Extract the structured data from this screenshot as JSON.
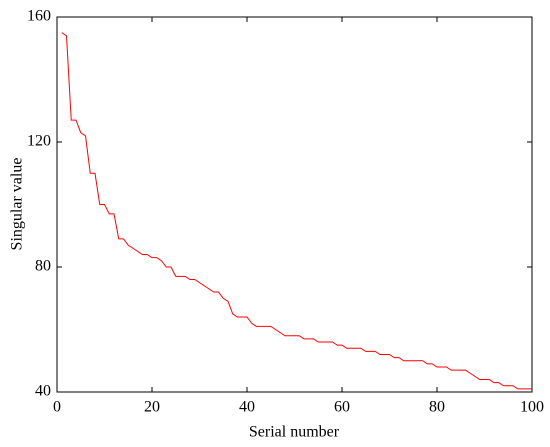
{
  "chart_data": {
    "type": "line",
    "xlabel": "Serial number",
    "ylabel": "Singular value",
    "xlim": [
      0,
      100
    ],
    "xticks": [
      0,
      20,
      40,
      60,
      80,
      100
    ],
    "ylim": [
      40,
      160
    ],
    "yticks": [
      40,
      80,
      120,
      160
    ],
    "grid": false,
    "x": [
      1,
      2,
      3,
      4,
      5,
      6,
      7,
      8,
      9,
      10,
      11,
      12,
      13,
      14,
      15,
      16,
      17,
      18,
      19,
      20,
      21,
      22,
      23,
      24,
      25,
      26,
      27,
      28,
      29,
      30,
      31,
      32,
      33,
      34,
      35,
      36,
      37,
      38,
      39,
      40,
      41,
      42,
      43,
      44,
      45,
      46,
      47,
      48,
      49,
      50,
      51,
      52,
      53,
      54,
      55,
      56,
      57,
      58,
      59,
      60,
      61,
      62,
      63,
      64,
      65,
      66,
      67,
      68,
      69,
      70,
      71,
      72,
      73,
      74,
      75,
      76,
      77,
      78,
      79,
      80,
      81,
      82,
      83,
      84,
      85,
      86,
      87,
      88,
      89,
      90,
      91,
      92,
      93,
      94,
      95,
      96,
      97,
      98,
      99,
      100
    ],
    "series": [
      {
        "color": "#ff0000",
        "values": [
          155,
          154,
          127,
          127,
          123,
          122,
          110,
          110,
          100,
          100,
          97,
          97,
          89,
          89,
          87,
          86,
          85,
          84,
          84,
          83,
          83,
          82,
          80,
          80,
          77,
          77,
          77,
          76,
          76,
          75,
          74,
          73,
          72,
          72,
          70,
          69,
          65,
          64,
          64,
          64,
          62,
          61,
          61,
          61,
          61,
          60,
          59,
          58,
          58,
          58,
          58,
          57,
          57,
          57,
          56,
          56,
          56,
          56,
          55,
          55,
          54,
          54,
          54,
          54,
          53,
          53,
          53,
          52,
          52,
          52,
          51,
          51,
          50,
          50,
          50,
          50,
          50,
          49,
          49,
          48,
          48,
          48,
          47,
          47,
          47,
          47,
          46,
          45,
          44,
          44,
          44,
          43,
          43,
          42,
          42,
          42,
          41,
          41,
          41,
          41
        ]
      }
    ]
  }
}
